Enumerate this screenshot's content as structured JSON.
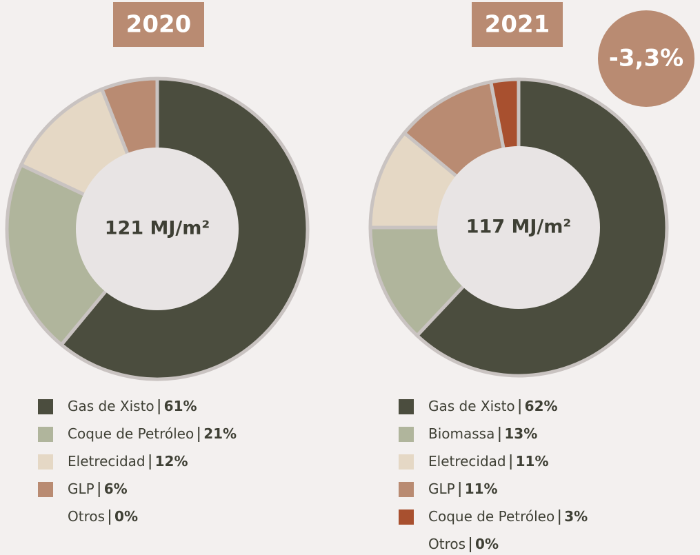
{
  "chart_data": [
    {
      "type": "pie",
      "title": "2020",
      "center_label": "121 MJ/m²",
      "categories": [
        "Gas de Xisto",
        "Coque de Petróleo",
        "Eletrecidad",
        "GLP",
        "Otros"
      ],
      "values": [
        61,
        21,
        12,
        6,
        0
      ],
      "value_labels": [
        "61%",
        "21%",
        "12%",
        "6%",
        "0%"
      ],
      "colors": [
        "#4b4d3e",
        "#b0b59c",
        "#e5d8c5",
        "#b98b72",
        null
      ]
    },
    {
      "type": "pie",
      "title": "2021",
      "center_label": "117 MJ/m²",
      "annotation": "-3,3%",
      "categories": [
        "Gas de Xisto",
        "Biomassa",
        "Eletrecidad",
        "GLP",
        "Coque de Petróleo",
        "Otros"
      ],
      "values": [
        62,
        13,
        11,
        11,
        3,
        0
      ],
      "value_labels": [
        "62%",
        "13%",
        "11%",
        "11%",
        "3%",
        "0%"
      ],
      "colors": [
        "#4b4d3e",
        "#b0b59c",
        "#e5d8c5",
        "#b98b72",
        "#a8502f",
        null
      ]
    }
  ]
}
